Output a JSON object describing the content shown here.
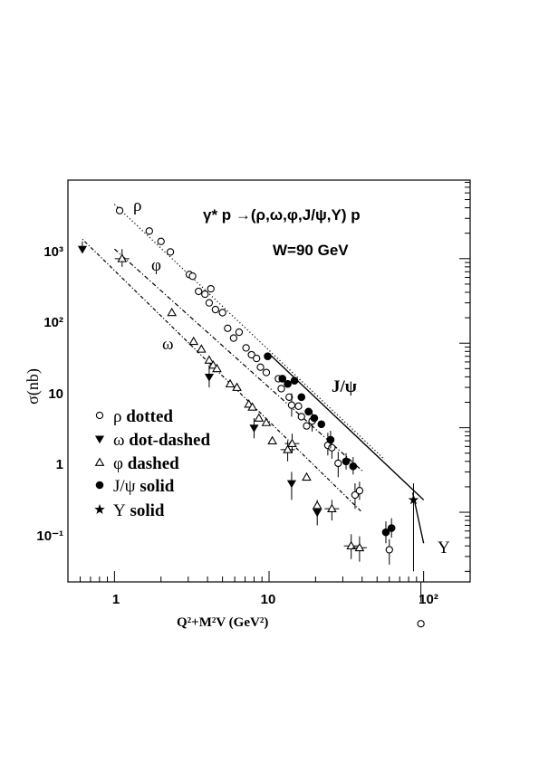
{
  "chart_data": {
    "type": "scatter",
    "title_lines": [
      "γ* p →(ρ,ω,φ,J/ψ,Υ) p",
      "W=90 GeV"
    ],
    "xlabel": "Q²+M²V (GeV²)",
    "ylabel": "σ(nb)",
    "xscale": "log",
    "yscale": "log",
    "xlim": [
      0.5,
      200
    ],
    "ylim": [
      0.015,
      850
    ],
    "x_tick_labels": [
      "1",
      "10",
      "10²"
    ],
    "y_tick_labels": [
      "10⁻¹",
      "1",
      "10",
      "10²",
      "10³"
    ],
    "legend_position": "left-bottom",
    "legend": [
      {
        "marker": "open-circle",
        "meson": "ρ",
        "style": "dotted"
      },
      {
        "marker": "down-triangle",
        "meson": "ω",
        "style": "dot-dashed"
      },
      {
        "marker": "open-triangle",
        "meson": "φ",
        "style": "dashed"
      },
      {
        "marker": "filled-circle",
        "meson": "J/ψ",
        "style": "solid"
      },
      {
        "marker": "star",
        "meson": "Υ",
        "style": "solid"
      }
    ],
    "curve_labels": [
      "ρ",
      "φ",
      "ω",
      "J/ψ",
      "Υ"
    ],
    "fits": [
      {
        "series": "ρ",
        "style": "dotted",
        "x": [
          1.0,
          56
        ],
        "y": [
          440,
          0.42
        ]
      },
      {
        "series": "φ",
        "style": "dashed",
        "x": [
          1.0,
          40
        ],
        "y": [
          130,
          0.31
        ]
      },
      {
        "series": "ω",
        "style": "dot-dashed",
        "x": [
          0.62,
          40
        ],
        "y": [
          170,
          0.1
        ]
      },
      {
        "series": "J/ψ",
        "style": "solid",
        "x": [
          10,
          100
        ],
        "y": [
          7.5,
          0.14
        ]
      },
      {
        "series": "Υ",
        "style": "solid",
        "x": [
          85,
          100
        ],
        "y": [
          0.17,
          0.043
        ]
      }
    ],
    "series": [
      {
        "name": "ρ",
        "marker": "open-circle",
        "points": [
          [
            1.08,
            370,
            0,
            0
          ],
          [
            1.68,
            212,
            0,
            0
          ],
          [
            2.0,
            160,
            0,
            0
          ],
          [
            2.3,
            120,
            0,
            0
          ],
          [
            3.05,
            65,
            0,
            0
          ],
          [
            3.2,
            62,
            0,
            0
          ],
          [
            3.5,
            41,
            0,
            0
          ],
          [
            3.85,
            38,
            0,
            0
          ],
          [
            4.1,
            30,
            0,
            0
          ],
          [
            4.2,
            44,
            0,
            0
          ],
          [
            4.5,
            25,
            0,
            0
          ],
          [
            5.0,
            23,
            0,
            0
          ],
          [
            5.4,
            15,
            0,
            0
          ],
          [
            5.9,
            11.5,
            0,
            0
          ],
          [
            6.4,
            13.5,
            0,
            0
          ],
          [
            7.1,
            8.8,
            0,
            0
          ],
          [
            7.7,
            7.3,
            0,
            0
          ],
          [
            8.3,
            6.6,
            0,
            0
          ],
          [
            8.8,
            5.2,
            0,
            0
          ],
          [
            9.6,
            4.5,
            0,
            0
          ],
          [
            11.5,
            3.8,
            0,
            0
          ],
          [
            12.0,
            2.9,
            0,
            0
          ],
          [
            13.5,
            2.3,
            0,
            0
          ],
          [
            14.0,
            1.85,
            0.7,
            0.5
          ],
          [
            15.5,
            1.8,
            0,
            0
          ],
          [
            16.2,
            1.35,
            0,
            0
          ],
          [
            17.5,
            1.05,
            0,
            0
          ],
          [
            19.0,
            1.2,
            0.4,
            0.3
          ],
          [
            24.0,
            0.62,
            0.25,
            0.15
          ],
          [
            25.5,
            0.58,
            0.2,
            0.15
          ],
          [
            28.0,
            0.38,
            0.14,
            0.12
          ],
          [
            36.0,
            0.16,
            0.06,
            0.05
          ],
          [
            38.5,
            0.18,
            0.05,
            0.04
          ],
          [
            60.0,
            0.036,
            0.012,
            0.012
          ],
          [
            96.0,
            0.0048,
            0.004,
            0.0025
          ]
        ]
      },
      {
        "name": "ω",
        "marker": "down-triangle",
        "points": [
          [
            0.62,
            130,
            30,
            0
          ],
          [
            4.1,
            4.0,
            1.5,
            1.0
          ],
          [
            8.0,
            1.0,
            0.3,
            0.25
          ],
          [
            14.0,
            0.22,
            0.08,
            0.08
          ],
          [
            20.5,
            0.1,
            0.04,
            0.03
          ]
        ]
      },
      {
        "name": "φ",
        "marker": "open-triangle",
        "points": [
          [
            1.12,
            100,
            30,
            20
          ],
          [
            2.35,
            23,
            0,
            0
          ],
          [
            3.25,
            10.5,
            0,
            0
          ],
          [
            3.65,
            8.5,
            0,
            0
          ],
          [
            4.1,
            6.3,
            0,
            0
          ],
          [
            4.35,
            5.5,
            0,
            0
          ],
          [
            4.6,
            5.0,
            0,
            0
          ],
          [
            5.6,
            3.3,
            0,
            0
          ],
          [
            6.2,
            3.0,
            0,
            0
          ],
          [
            7.4,
            1.9,
            0,
            0
          ],
          [
            7.8,
            1.75,
            0,
            0
          ],
          [
            8.6,
            1.3,
            0,
            0
          ],
          [
            9.6,
            1.15,
            0,
            0
          ],
          [
            10.5,
            0.7,
            0,
            0
          ],
          [
            13.2,
            0.55,
            0.15,
            0.15
          ],
          [
            14.1,
            0.65,
            0.2,
            0.15
          ],
          [
            17.5,
            0.26,
            0,
            0
          ],
          [
            20.5,
            0.12,
            0,
            0
          ],
          [
            25.5,
            0.11,
            0.03,
            0.03
          ],
          [
            34.0,
            0.04,
            0.015,
            0.012
          ],
          [
            38.5,
            0.038,
            0.014,
            0.012
          ]
        ]
      },
      {
        "name": "J/ψ",
        "marker": "filled-circle",
        "points": [
          [
            9.8,
            7.0,
            0,
            0
          ],
          [
            12.2,
            3.8,
            0,
            0
          ],
          [
            13.2,
            3.3,
            0,
            0
          ],
          [
            14.6,
            3.6,
            0,
            0
          ],
          [
            16.2,
            2.3,
            0,
            0
          ],
          [
            18.0,
            1.55,
            0,
            0
          ],
          [
            19.6,
            1.3,
            0,
            0
          ],
          [
            21.8,
            1.1,
            0,
            0
          ],
          [
            25.0,
            0.72,
            0.2,
            0.15
          ],
          [
            31.5,
            0.4,
            0.1,
            0.08
          ],
          [
            35.0,
            0.35,
            0.1,
            0.07
          ],
          [
            57.0,
            0.058,
            0.02,
            0.015
          ],
          [
            62.0,
            0.065,
            0.02,
            0.015
          ]
        ]
      },
      {
        "name": "Υ",
        "marker": "star",
        "points": [
          [
            86.0,
            0.14,
            0.08,
            0.12
          ]
        ]
      }
    ]
  }
}
